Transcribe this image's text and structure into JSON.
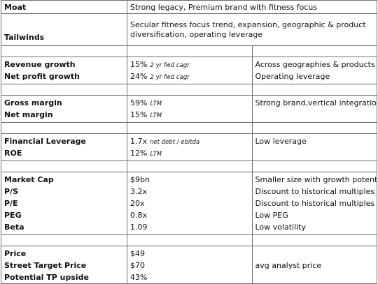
{
  "moat": {
    "label": "Moat",
    "text": "Strong legacy, Premium brand with fitness focus"
  },
  "tailwinds": {
    "label": "Tailwinds",
    "text": "Secular fitness focus trend, expansion, geographic & product diversification, operating leverage"
  },
  "growth": {
    "labels": [
      "Revenue growth",
      "Net profit growth"
    ],
    "values": [
      {
        "main": "15%",
        "sub": "2 yr fwd cagr"
      },
      {
        "main": "24%",
        "sub": "2 yr fwd cagr"
      }
    ],
    "notes": [
      "Across geographies & products",
      "Operating leverage"
    ]
  },
  "margins": {
    "labels": [
      "Gross margin",
      "Net margin"
    ],
    "values": [
      {
        "main": "59%",
        "sub": "LTM"
      },
      {
        "main": "15%",
        "sub": "LTM"
      }
    ],
    "note": "Strong brand,vertical integration"
  },
  "leverage": {
    "labels": [
      "Financial Leverage",
      "ROE"
    ],
    "values": [
      {
        "main": "1.7x",
        "sub": "net debt / ebitda"
      },
      {
        "main": "12%",
        "sub": "LTM"
      }
    ],
    "note": "Low leverage"
  },
  "valuation": {
    "labels": [
      "Market Cap",
      "P/S",
      "P/E",
      "PEG",
      "Beta"
    ],
    "values": [
      "$9bn",
      "3.2x",
      "20x",
      "0.8x",
      "1.09"
    ],
    "notes": [
      "Smaller size with growth potential",
      "Discount to historical multiples",
      "Discount to historical multiples",
      "Low PEG",
      "Low volatility"
    ]
  },
  "price": {
    "labels": [
      "Price",
      "Street Target Price",
      "Potential TP upside"
    ],
    "values": [
      "$49",
      "$70",
      "43%"
    ],
    "notes": [
      "",
      "avg analyst price",
      ""
    ]
  }
}
